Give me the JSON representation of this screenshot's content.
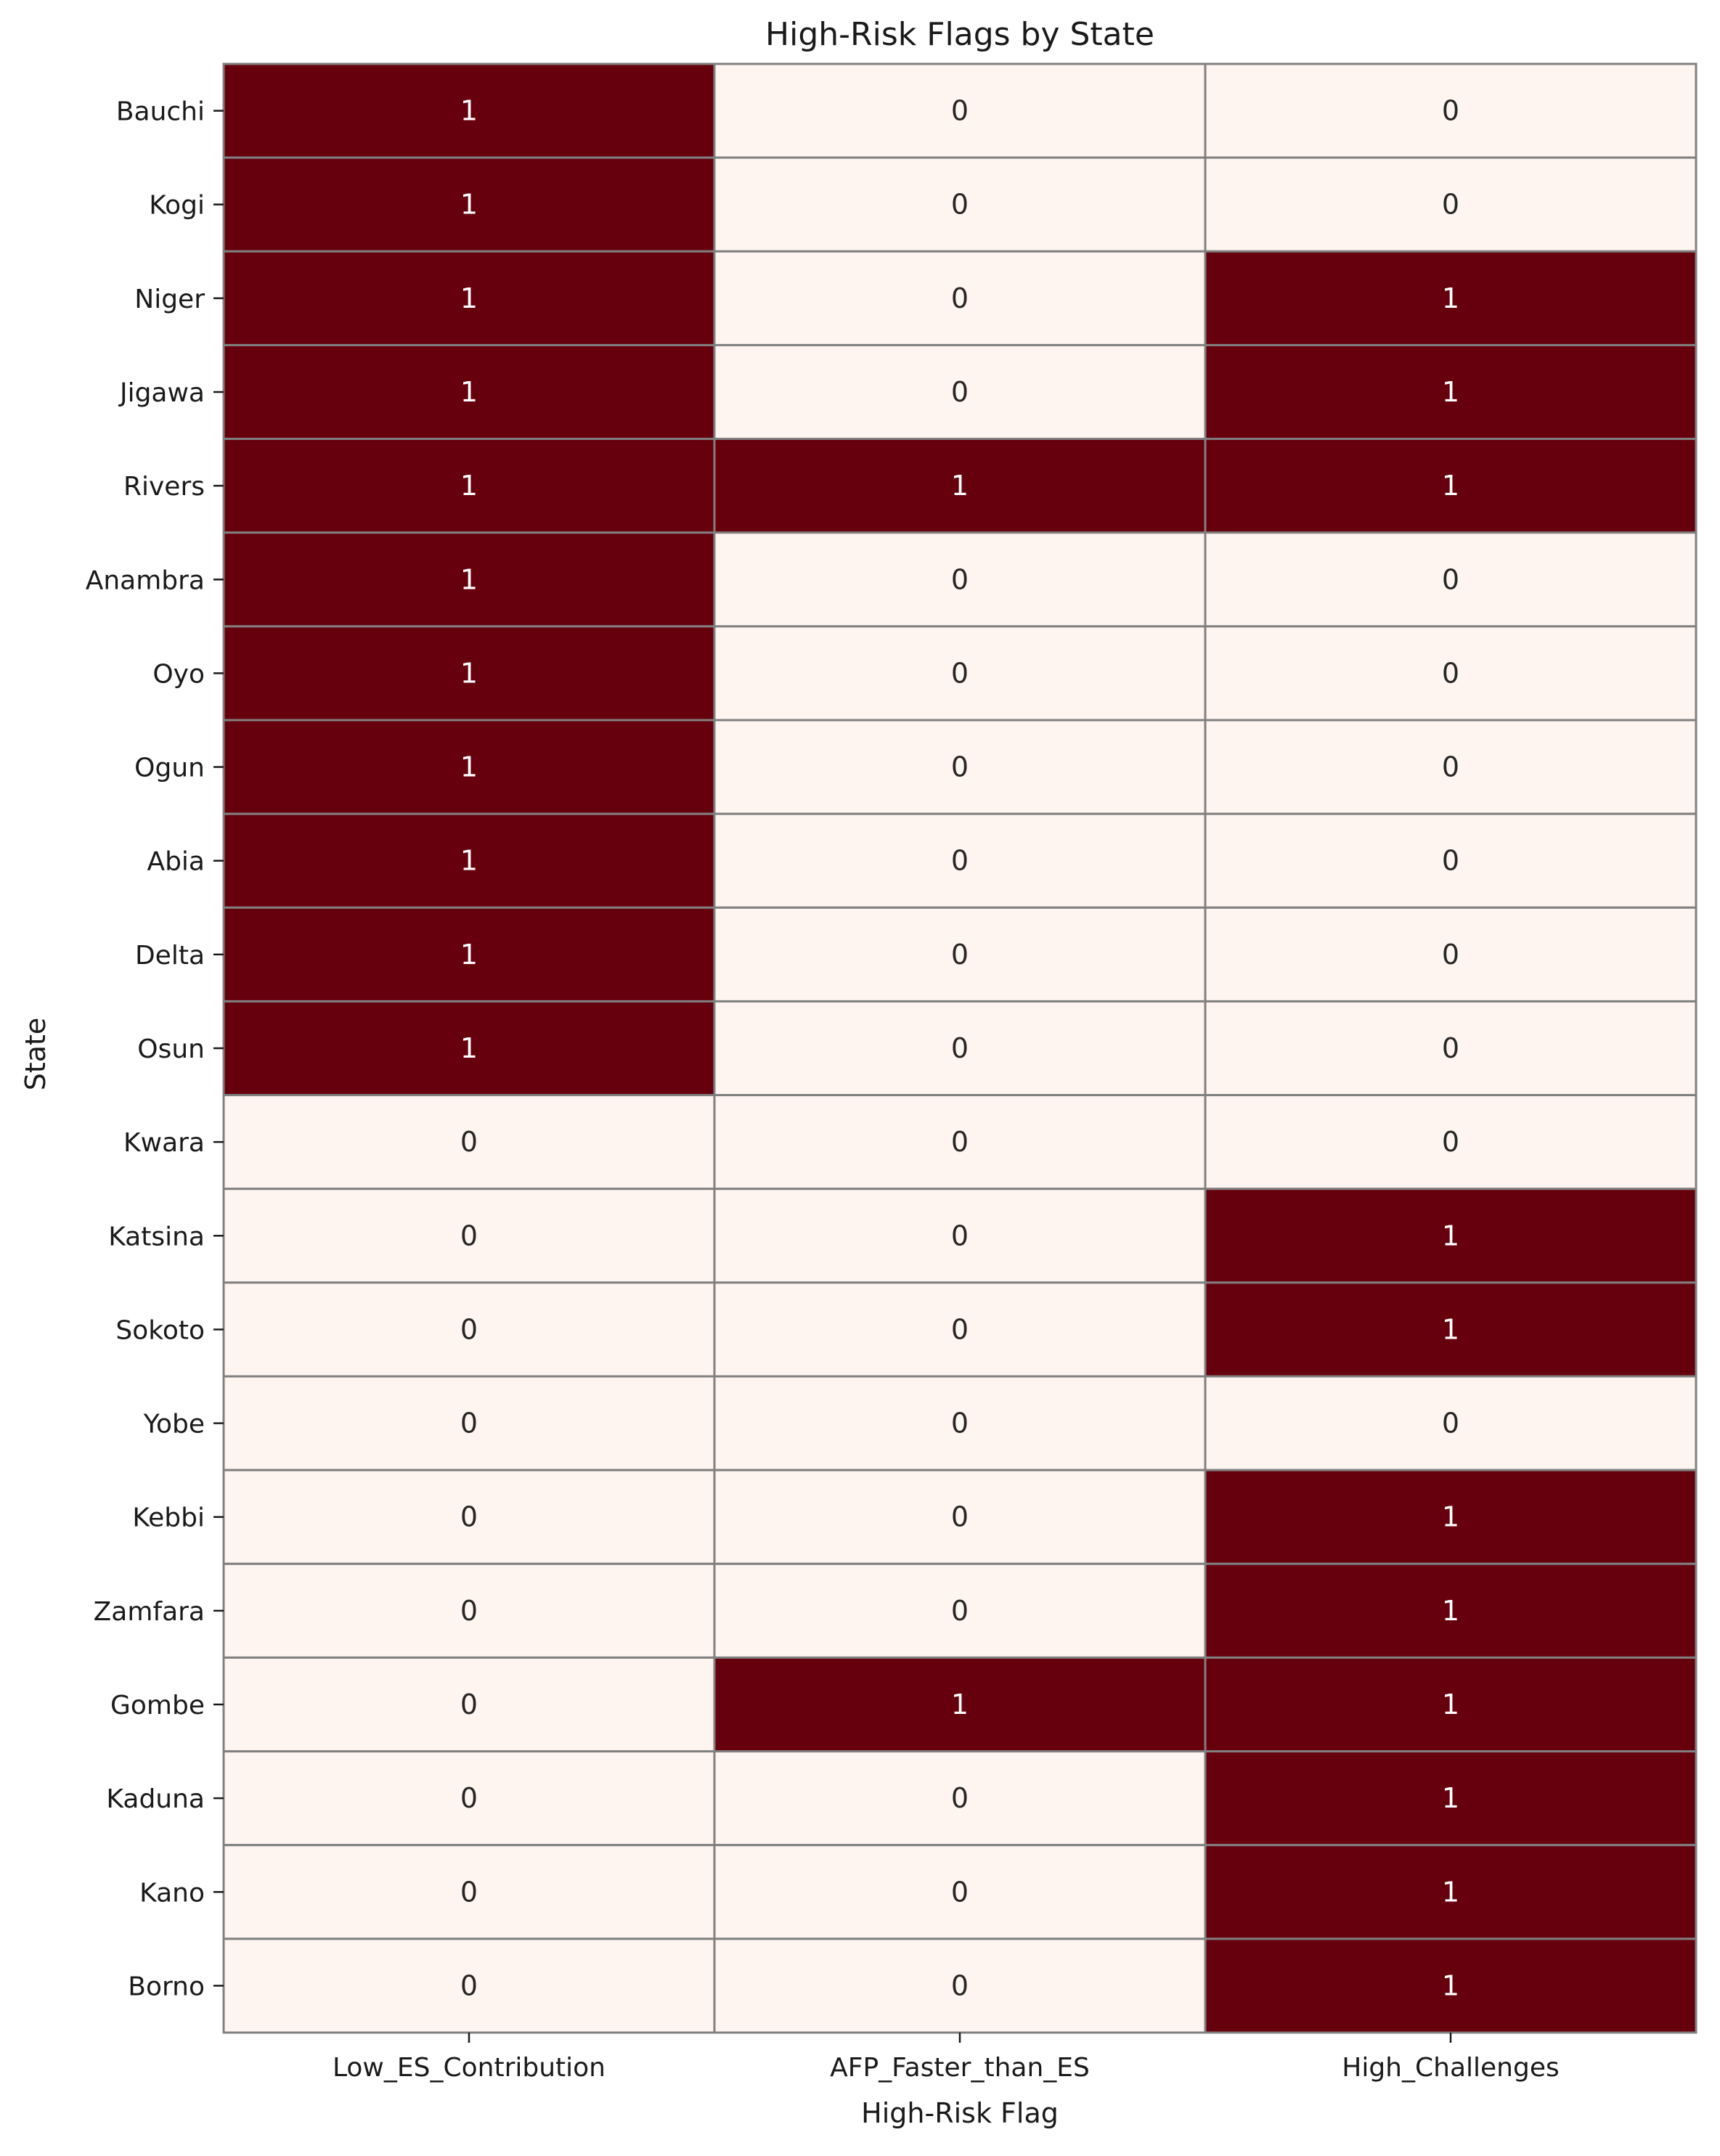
{
  "chart_data": {
    "type": "heatmap",
    "title": "High-Risk Flags by State",
    "xlabel": "High-Risk Flag",
    "ylabel": "State",
    "columns": [
      "Low_ES_Contribution",
      "AFP_Faster_than_ES",
      "High_Challenges"
    ],
    "rows": [
      "Bauchi",
      "Kogi",
      "Niger",
      "Jigawa",
      "Rivers",
      "Anambra",
      "Oyo",
      "Ogun",
      "Abia",
      "Delta",
      "Osun",
      "Kwara",
      "Katsina",
      "Sokoto",
      "Yobe",
      "Kebbi",
      "Zamfara",
      "Gombe",
      "Kaduna",
      "Kano",
      "Borno"
    ],
    "values": [
      [
        1,
        0,
        0
      ],
      [
        1,
        0,
        0
      ],
      [
        1,
        0,
        1
      ],
      [
        1,
        0,
        1
      ],
      [
        1,
        1,
        1
      ],
      [
        1,
        0,
        0
      ],
      [
        1,
        0,
        0
      ],
      [
        1,
        0,
        0
      ],
      [
        1,
        0,
        0
      ],
      [
        1,
        0,
        0
      ],
      [
        1,
        0,
        0
      ],
      [
        0,
        0,
        0
      ],
      [
        0,
        0,
        1
      ],
      [
        0,
        0,
        1
      ],
      [
        0,
        0,
        0
      ],
      [
        0,
        0,
        1
      ],
      [
        0,
        0,
        1
      ],
      [
        0,
        1,
        1
      ],
      [
        0,
        0,
        1
      ],
      [
        0,
        0,
        1
      ],
      [
        0,
        0,
        1
      ]
    ],
    "colors": {
      "high": "#67000d",
      "low": "#fff5f0",
      "cell_border": "#808080",
      "text_on_high": "#ffffff",
      "text_on_low": "#262626"
    },
    "grid": true,
    "legend": "none"
  }
}
